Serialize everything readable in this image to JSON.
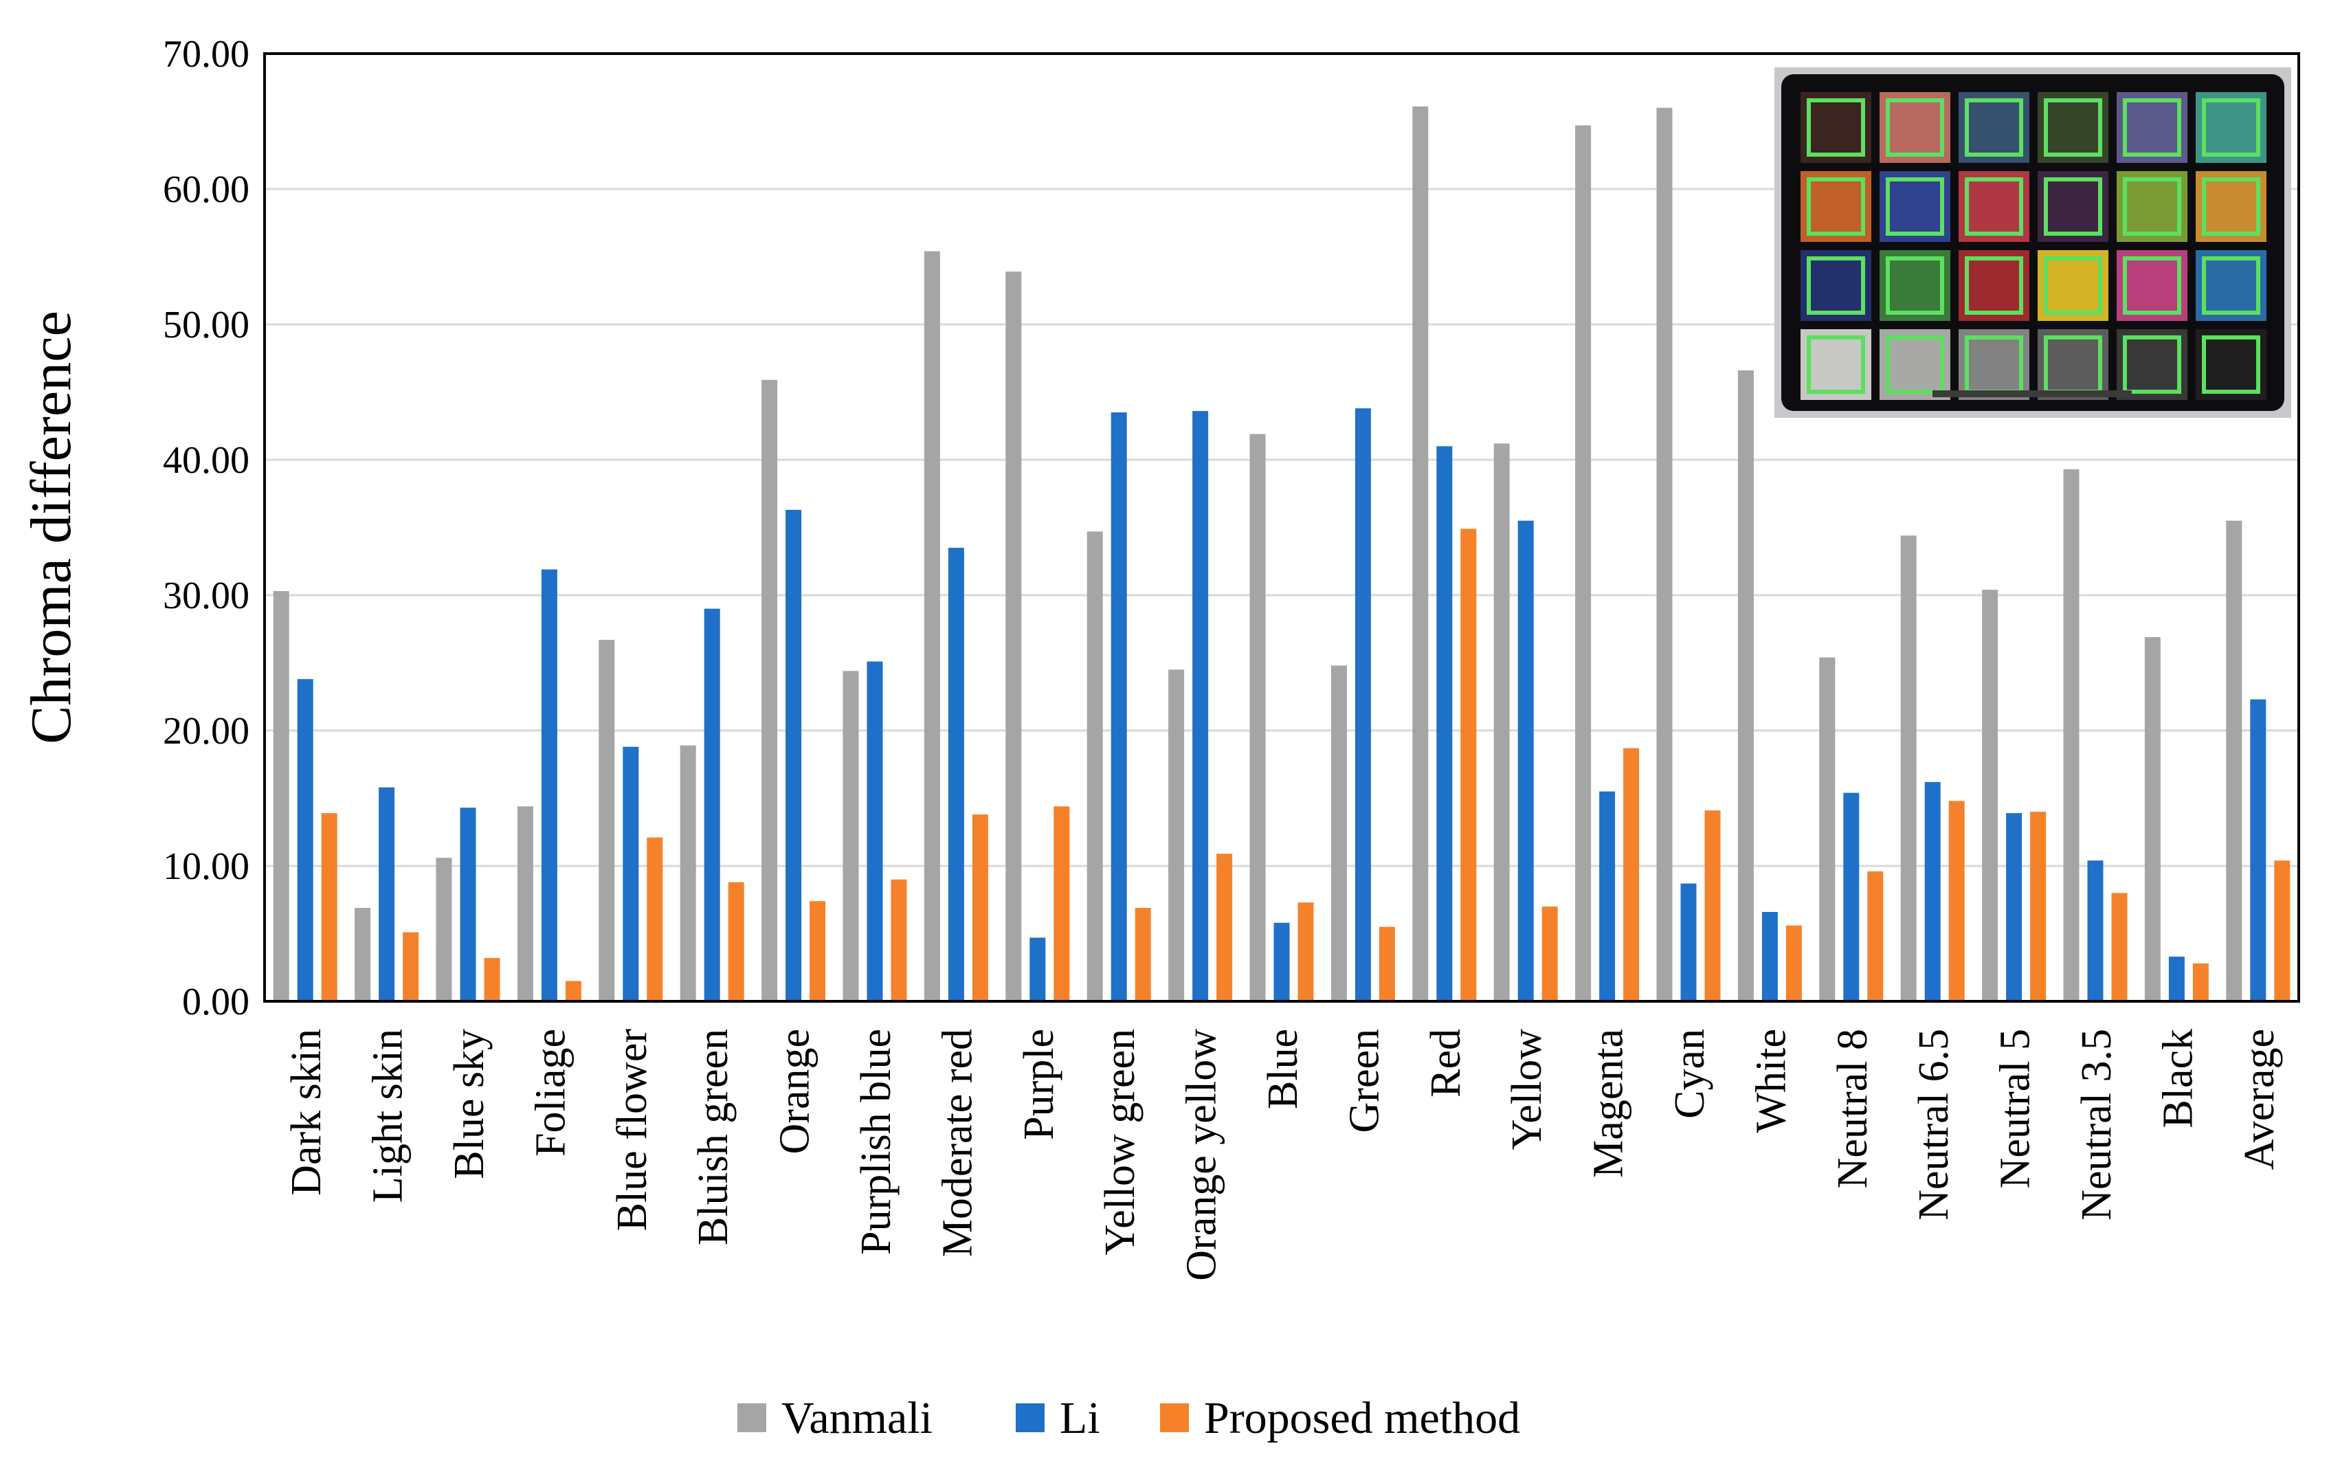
{
  "chart_data": {
    "type": "bar",
    "title": "",
    "xlabel": "",
    "ylabel": "Chroma  difference",
    "ylim": [
      0,
      70
    ],
    "yticks": [
      "0.00",
      "10.00",
      "20.00",
      "30.00",
      "40.00",
      "50.00",
      "60.00",
      "70.00"
    ],
    "grid": "horizontal",
    "legend_position": "bottom-center",
    "categories": [
      "Dark skin",
      "Light skin",
      "Blue sky",
      "Foliage",
      "Blue flower",
      "Bluish green",
      "Orange",
      "Purplish blue",
      "Moderate red",
      "Purple",
      "Yellow green",
      "Orange yellow",
      "Blue",
      "Green",
      "Red",
      "Yellow",
      "Magenta",
      "Cyan",
      "White",
      "Neutral 8",
      "Neutral 6.5",
      "Neutral 5",
      "Neutral 3.5",
      "Black",
      "Average"
    ],
    "series": [
      {
        "name": "Vanmali",
        "color": "#a5a5a5",
        "values": [
          30.3,
          6.9,
          10.6,
          14.4,
          26.7,
          18.9,
          45.9,
          24.4,
          55.4,
          53.9,
          34.7,
          24.5,
          41.9,
          24.8,
          66.1,
          41.2,
          64.7,
          66.0,
          46.6,
          25.4,
          34.4,
          30.4,
          39.3,
          26.9,
          35.5
        ]
      },
      {
        "name": "Li",
        "color": "#1f70c8",
        "values": [
          23.8,
          15.8,
          14.3,
          31.9,
          18.8,
          29.0,
          36.3,
          25.1,
          33.5,
          4.7,
          43.5,
          43.6,
          5.8,
          43.8,
          41.0,
          35.5,
          15.5,
          8.7,
          6.6,
          15.4,
          16.2,
          13.9,
          10.4,
          3.3,
          22.3
        ]
      },
      {
        "name": "Proposed method",
        "color": "#f5822a",
        "values": [
          13.9,
          5.1,
          3.2,
          1.5,
          12.1,
          8.8,
          7.4,
          9.0,
          13.8,
          14.4,
          6.9,
          10.9,
          7.3,
          5.5,
          34.9,
          7.0,
          18.7,
          14.1,
          5.6,
          9.6,
          14.8,
          14.0,
          8.0,
          2.8,
          10.4
        ]
      }
    ]
  },
  "inset": {
    "grid_rows": [
      [
        "#3a2520",
        "#b86a60",
        "#36506e",
        "#36452a",
        "#5c5a8a",
        "#3f9488"
      ],
      [
        "#c06028",
        "#30428e",
        "#b03844",
        "#3d2640",
        "#7c9a34",
        "#c88c30"
      ],
      [
        "#24306c",
        "#3a7a3a",
        "#9c2a2e",
        "#d4b426",
        "#b8407c",
        "#2a6ca6"
      ],
      [
        "#c8c8c4",
        "#a8a8a6",
        "#828282",
        "#5c5c5c",
        "#383838",
        "#1e1e1e"
      ]
    ],
    "outline_color": "#5ce060"
  }
}
